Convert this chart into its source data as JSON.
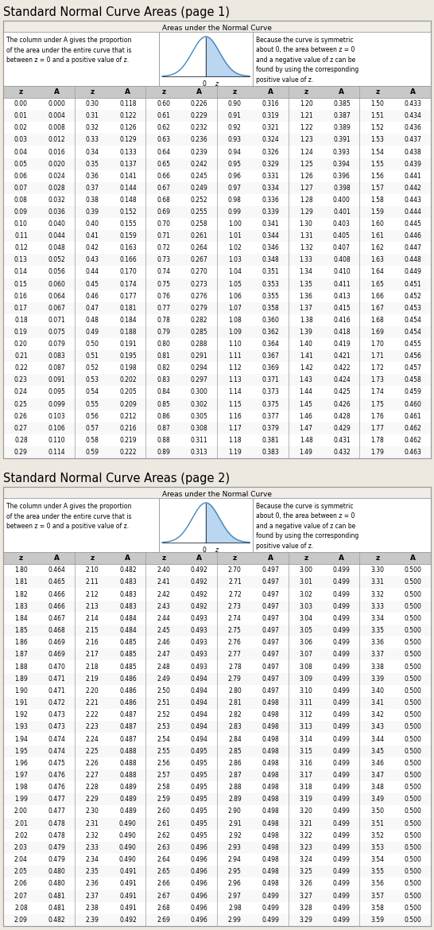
{
  "page1_title": "Standard Normal Curve Areas (page 1)",
  "page2_title": "Standard Normal Curve Areas (page 2)",
  "header_center": "Areas under the Normal Curve",
  "left_text": "The column under A gives the proportion\nof the area under the entire curve that is\nbetween z = 0 and a positive value of z.",
  "right_text": "Because the curve is symmetric\nabout 0, the area between z = 0\nand a negative value of z can be\nfound by using the corresponding\npositive value of z.",
  "col_headers": [
    "z",
    "A",
    "z",
    "A",
    "z",
    "A",
    "z",
    "A",
    "z",
    "A",
    "z",
    "A"
  ],
  "page1_data": [
    [
      0.0,
      0.0,
      0.3,
      0.118,
      0.6,
      0.226,
      0.9,
      0.316,
      1.2,
      0.385,
      1.5,
      0.433
    ],
    [
      0.01,
      0.004,
      0.31,
      0.122,
      0.61,
      0.229,
      0.91,
      0.319,
      1.21,
      0.387,
      1.51,
      0.434
    ],
    [
      0.02,
      0.008,
      0.32,
      0.126,
      0.62,
      0.232,
      0.92,
      0.321,
      1.22,
      0.389,
      1.52,
      0.436
    ],
    [
      0.03,
      0.012,
      0.33,
      0.129,
      0.63,
      0.236,
      0.93,
      0.324,
      1.23,
      0.391,
      1.53,
      0.437
    ],
    [
      0.04,
      0.016,
      0.34,
      0.133,
      0.64,
      0.239,
      0.94,
      0.326,
      1.24,
      0.393,
      1.54,
      0.438
    ],
    [
      0.05,
      0.02,
      0.35,
      0.137,
      0.65,
      0.242,
      0.95,
      0.329,
      1.25,
      0.394,
      1.55,
      0.439
    ],
    [
      0.06,
      0.024,
      0.36,
      0.141,
      0.66,
      0.245,
      0.96,
      0.331,
      1.26,
      0.396,
      1.56,
      0.441
    ],
    [
      0.07,
      0.028,
      0.37,
      0.144,
      0.67,
      0.249,
      0.97,
      0.334,
      1.27,
      0.398,
      1.57,
      0.442
    ],
    [
      0.08,
      0.032,
      0.38,
      0.148,
      0.68,
      0.252,
      0.98,
      0.336,
      1.28,
      0.4,
      1.58,
      0.443
    ],
    [
      0.09,
      0.036,
      0.39,
      0.152,
      0.69,
      0.255,
      0.99,
      0.339,
      1.29,
      0.401,
      1.59,
      0.444
    ],
    [
      0.1,
      0.04,
      0.4,
      0.155,
      0.7,
      0.258,
      1.0,
      0.341,
      1.3,
      0.403,
      1.6,
      0.445
    ],
    [
      0.11,
      0.044,
      0.41,
      0.159,
      0.71,
      0.261,
      1.01,
      0.344,
      1.31,
      0.405,
      1.61,
      0.446
    ],
    [
      0.12,
      0.048,
      0.42,
      0.163,
      0.72,
      0.264,
      1.02,
      0.346,
      1.32,
      0.407,
      1.62,
      0.447
    ],
    [
      0.13,
      0.052,
      0.43,
      0.166,
      0.73,
      0.267,
      1.03,
      0.348,
      1.33,
      0.408,
      1.63,
      0.448
    ],
    [
      0.14,
      0.056,
      0.44,
      0.17,
      0.74,
      0.27,
      1.04,
      0.351,
      1.34,
      0.41,
      1.64,
      0.449
    ],
    [
      0.15,
      0.06,
      0.45,
      0.174,
      0.75,
      0.273,
      1.05,
      0.353,
      1.35,
      0.411,
      1.65,
      0.451
    ],
    [
      0.16,
      0.064,
      0.46,
      0.177,
      0.76,
      0.276,
      1.06,
      0.355,
      1.36,
      0.413,
      1.66,
      0.452
    ],
    [
      0.17,
      0.067,
      0.47,
      0.181,
      0.77,
      0.279,
      1.07,
      0.358,
      1.37,
      0.415,
      1.67,
      0.453
    ],
    [
      0.18,
      0.071,
      0.48,
      0.184,
      0.78,
      0.282,
      1.08,
      0.36,
      1.38,
      0.416,
      1.68,
      0.454
    ],
    [
      0.19,
      0.075,
      0.49,
      0.188,
      0.79,
      0.285,
      1.09,
      0.362,
      1.39,
      0.418,
      1.69,
      0.454
    ],
    [
      0.2,
      0.079,
      0.5,
      0.191,
      0.8,
      0.288,
      1.1,
      0.364,
      1.4,
      0.419,
      1.7,
      0.455
    ],
    [
      0.21,
      0.083,
      0.51,
      0.195,
      0.81,
      0.291,
      1.11,
      0.367,
      1.41,
      0.421,
      1.71,
      0.456
    ],
    [
      0.22,
      0.087,
      0.52,
      0.198,
      0.82,
      0.294,
      1.12,
      0.369,
      1.42,
      0.422,
      1.72,
      0.457
    ],
    [
      0.23,
      0.091,
      0.53,
      0.202,
      0.83,
      0.297,
      1.13,
      0.371,
      1.43,
      0.424,
      1.73,
      0.458
    ],
    [
      0.24,
      0.095,
      0.54,
      0.205,
      0.84,
      0.3,
      1.14,
      0.373,
      1.44,
      0.425,
      1.74,
      0.459
    ],
    [
      0.25,
      0.099,
      0.55,
      0.209,
      0.85,
      0.302,
      1.15,
      0.375,
      1.45,
      0.426,
      1.75,
      0.46
    ],
    [
      0.26,
      0.103,
      0.56,
      0.212,
      0.86,
      0.305,
      1.16,
      0.377,
      1.46,
      0.428,
      1.76,
      0.461
    ],
    [
      0.27,
      0.106,
      0.57,
      0.216,
      0.87,
      0.308,
      1.17,
      0.379,
      1.47,
      0.429,
      1.77,
      0.462
    ],
    [
      0.28,
      0.11,
      0.58,
      0.219,
      0.88,
      0.311,
      1.18,
      0.381,
      1.48,
      0.431,
      1.78,
      0.462
    ],
    [
      0.29,
      0.114,
      0.59,
      0.222,
      0.89,
      0.313,
      1.19,
      0.383,
      1.49,
      0.432,
      1.79,
      0.463
    ]
  ],
  "page2_data": [
    [
      1.8,
      0.464,
      2.1,
      0.482,
      2.4,
      0.492,
      2.7,
      0.497,
      3.0,
      0.499,
      3.3,
      0.5
    ],
    [
      1.81,
      0.465,
      2.11,
      0.483,
      2.41,
      0.492,
      2.71,
      0.497,
      3.01,
      0.499,
      3.31,
      0.5
    ],
    [
      1.82,
      0.466,
      2.12,
      0.483,
      2.42,
      0.492,
      2.72,
      0.497,
      3.02,
      0.499,
      3.32,
      0.5
    ],
    [
      1.83,
      0.466,
      2.13,
      0.483,
      2.43,
      0.492,
      2.73,
      0.497,
      3.03,
      0.499,
      3.33,
      0.5
    ],
    [
      1.84,
      0.467,
      2.14,
      0.484,
      2.44,
      0.493,
      2.74,
      0.497,
      3.04,
      0.499,
      3.34,
      0.5
    ],
    [
      1.85,
      0.468,
      2.15,
      0.484,
      2.45,
      0.493,
      2.75,
      0.497,
      3.05,
      0.499,
      3.35,
      0.5
    ],
    [
      1.86,
      0.469,
      2.16,
      0.485,
      2.46,
      0.493,
      2.76,
      0.497,
      3.06,
      0.499,
      3.36,
      0.5
    ],
    [
      1.87,
      0.469,
      2.17,
      0.485,
      2.47,
      0.493,
      2.77,
      0.497,
      3.07,
      0.499,
      3.37,
      0.5
    ],
    [
      1.88,
      0.47,
      2.18,
      0.485,
      2.48,
      0.493,
      2.78,
      0.497,
      3.08,
      0.499,
      3.38,
      0.5
    ],
    [
      1.89,
      0.471,
      2.19,
      0.486,
      2.49,
      0.494,
      2.79,
      0.497,
      3.09,
      0.499,
      3.39,
      0.5
    ],
    [
      1.9,
      0.471,
      2.2,
      0.486,
      2.5,
      0.494,
      2.8,
      0.497,
      3.1,
      0.499,
      3.4,
      0.5
    ],
    [
      1.91,
      0.472,
      2.21,
      0.486,
      2.51,
      0.494,
      2.81,
      0.498,
      3.11,
      0.499,
      3.41,
      0.5
    ],
    [
      1.92,
      0.473,
      2.22,
      0.487,
      2.52,
      0.494,
      2.82,
      0.498,
      3.12,
      0.499,
      3.42,
      0.5
    ],
    [
      1.93,
      0.473,
      2.23,
      0.487,
      2.53,
      0.494,
      2.83,
      0.498,
      3.13,
      0.499,
      3.43,
      0.5
    ],
    [
      1.94,
      0.474,
      2.24,
      0.487,
      2.54,
      0.494,
      2.84,
      0.498,
      3.14,
      0.499,
      3.44,
      0.5
    ],
    [
      1.95,
      0.474,
      2.25,
      0.488,
      2.55,
      0.495,
      2.85,
      0.498,
      3.15,
      0.499,
      3.45,
      0.5
    ],
    [
      1.96,
      0.475,
      2.26,
      0.488,
      2.56,
      0.495,
      2.86,
      0.498,
      3.16,
      0.499,
      3.46,
      0.5
    ],
    [
      1.97,
      0.476,
      2.27,
      0.488,
      2.57,
      0.495,
      2.87,
      0.498,
      3.17,
      0.499,
      3.47,
      0.5
    ],
    [
      1.98,
      0.476,
      2.28,
      0.489,
      2.58,
      0.495,
      2.88,
      0.498,
      3.18,
      0.499,
      3.48,
      0.5
    ],
    [
      1.99,
      0.477,
      2.29,
      0.489,
      2.59,
      0.495,
      2.89,
      0.498,
      3.19,
      0.499,
      3.49,
      0.5
    ],
    [
      2.0,
      0.477,
      2.3,
      0.489,
      2.6,
      0.495,
      2.9,
      0.498,
      3.2,
      0.499,
      3.5,
      0.5
    ],
    [
      2.01,
      0.478,
      2.31,
      0.49,
      2.61,
      0.495,
      2.91,
      0.498,
      3.21,
      0.499,
      3.51,
      0.5
    ],
    [
      2.02,
      0.478,
      2.32,
      0.49,
      2.62,
      0.495,
      2.92,
      0.498,
      3.22,
      0.499,
      3.52,
      0.5
    ],
    [
      2.03,
      0.479,
      2.33,
      0.49,
      2.63,
      0.496,
      2.93,
      0.498,
      3.23,
      0.499,
      3.53,
      0.5
    ],
    [
      2.04,
      0.479,
      2.34,
      0.49,
      2.64,
      0.496,
      2.94,
      0.498,
      3.24,
      0.499,
      3.54,
      0.5
    ],
    [
      2.05,
      0.48,
      2.35,
      0.491,
      2.65,
      0.496,
      2.95,
      0.498,
      3.25,
      0.499,
      3.55,
      0.5
    ],
    [
      2.06,
      0.48,
      2.36,
      0.491,
      2.66,
      0.496,
      2.96,
      0.498,
      3.26,
      0.499,
      3.56,
      0.5
    ],
    [
      2.07,
      0.481,
      2.37,
      0.491,
      2.67,
      0.496,
      2.97,
      0.499,
      3.27,
      0.499,
      3.57,
      0.5
    ],
    [
      2.08,
      0.481,
      2.38,
      0.491,
      2.68,
      0.496,
      2.98,
      0.499,
      3.28,
      0.499,
      3.58,
      0.5
    ],
    [
      2.09,
      0.482,
      2.39,
      0.492,
      2.69,
      0.496,
      2.99,
      0.499,
      3.29,
      0.499,
      3.59,
      0.5
    ]
  ],
  "bg_color": "#ede8e0",
  "outer_bg": "#e8e4dc",
  "table_bg": "#ffffff",
  "header_row_bg": "#c8c8c8",
  "border_color": "#999999",
  "text_color": "#000000",
  "title_fontsize": 11,
  "cell_fontsize": 5.8,
  "header_fontsize": 7
}
